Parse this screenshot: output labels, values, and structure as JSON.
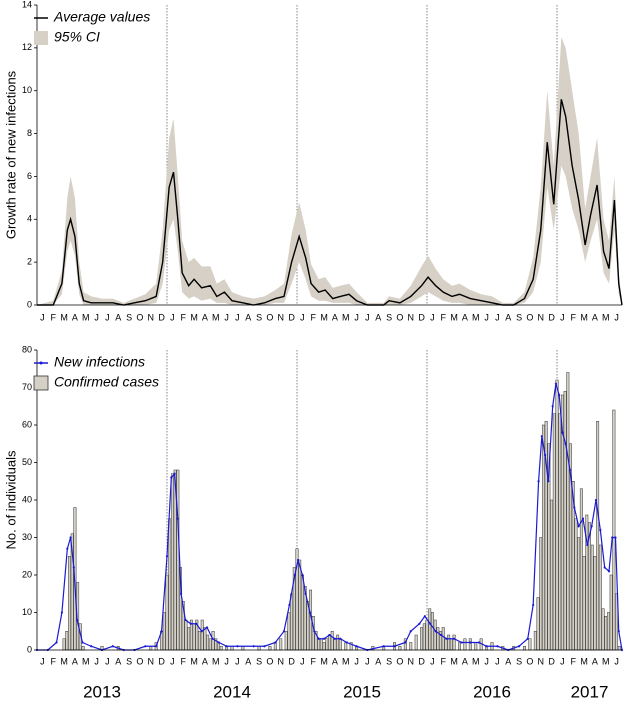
{
  "chart_data": [
    {
      "type": "line",
      "y_label": "Growth rate of new infections",
      "categories": [
        "J",
        "F",
        "M",
        "A",
        "M",
        "J",
        "J",
        "A",
        "S",
        "O",
        "N",
        "D",
        "J",
        "F",
        "M",
        "A",
        "M",
        "J",
        "J",
        "A",
        "S",
        "O",
        "N",
        "D",
        "J",
        "F",
        "M",
        "A",
        "M",
        "J",
        "J",
        "A",
        "S",
        "O",
        "N",
        "D",
        "J",
        "F",
        "M",
        "A",
        "M",
        "J",
        "J",
        "A",
        "S",
        "O",
        "N",
        "D",
        "J",
        "F",
        "M",
        "A",
        "M",
        "J"
      ],
      "xlim": [
        0,
        54
      ],
      "ylim": [
        0,
        14
      ],
      "yticks": [
        0,
        2,
        4,
        6,
        8,
        10,
        12,
        14
      ],
      "vlines": [
        12,
        24,
        36,
        48
      ],
      "legend": "upper left",
      "x": [
        0,
        1.5,
        2.3,
        2.8,
        3.1,
        3.5,
        3.9,
        4.3,
        5,
        6,
        7,
        8,
        9,
        10,
        11,
        11.6,
        12.2,
        12.6,
        13,
        13.4,
        14,
        14.5,
        15.2,
        16,
        16.6,
        17.3,
        18,
        19,
        20,
        21,
        22,
        22.8,
        23.5,
        24.2,
        24.8,
        25.3,
        26,
        26.6,
        27.3,
        28,
        28.8,
        29.5,
        30.5,
        32,
        32.5,
        33.5,
        34.5,
        35.5,
        36.1,
        36.8,
        37.5,
        38.3,
        39,
        40,
        41,
        42,
        43,
        44,
        45,
        45.8,
        46.5,
        47.1,
        47.7,
        48.4,
        48.8,
        49.4,
        50,
        50.6,
        51.1,
        51.7,
        52.3,
        52.8,
        53.3,
        53.7,
        54
      ],
      "series": [
        {
          "name": "Average values",
          "type": "line",
          "color": "#000000",
          "values": [
            0,
            0,
            1,
            3.5,
            4,
            3.2,
            1,
            0.2,
            0.1,
            0.1,
            0.1,
            0,
            0.1,
            0.2,
            0.4,
            2,
            5.5,
            6.2,
            4,
            1.5,
            0.9,
            1.2,
            0.8,
            0.9,
            0.4,
            0.6,
            0.2,
            0.1,
            0,
            0.1,
            0.3,
            0.4,
            2,
            3.2,
            2.2,
            1,
            0.6,
            0.7,
            0.3,
            0.4,
            0.5,
            0.2,
            0,
            0,
            0.2,
            0.1,
            0.4,
            0.9,
            1.3,
            0.9,
            0.6,
            0.4,
            0.5,
            0.3,
            0.2,
            0.1,
            0,
            0,
            0.3,
            1.2,
            3.5,
            7.6,
            4.7,
            9.6,
            8.8,
            6.5,
            4.9,
            2.8,
            4.2,
            5.6,
            2.5,
            1.7,
            4.9,
            1,
            0
          ]
        },
        {
          "name": "95% CI",
          "type": "band",
          "color": "#d6d0c6",
          "lower": [
            0,
            0,
            0.5,
            2.5,
            3,
            2.3,
            0.5,
            0,
            0,
            0,
            0,
            0,
            0,
            0,
            0.1,
            1,
            3.5,
            4,
            2.5,
            0.6,
            0.3,
            0.4,
            0.2,
            0.3,
            0.1,
            0.1,
            0,
            0,
            0,
            0,
            0.1,
            0.1,
            1,
            2,
            1.2,
            0.4,
            0.2,
            0.2,
            0.1,
            0.1,
            0.1,
            0,
            0,
            0,
            0,
            0,
            0.1,
            0.4,
            0.6,
            0.4,
            0.2,
            0.1,
            0.1,
            0,
            0,
            0,
            0,
            0,
            0.1,
            0.6,
            2,
            5.5,
            3.5,
            6.5,
            6,
            4.5,
            3.5,
            2,
            3,
            4,
            1.5,
            1,
            3.5,
            0.5,
            0
          ],
          "upper": [
            0,
            0.2,
            1.6,
            5,
            6,
            5,
            2,
            0.6,
            0.4,
            0.3,
            0.3,
            0.1,
            0.3,
            0.5,
            1,
            3.5,
            7.8,
            8.7,
            6,
            3,
            2,
            2.2,
            1.8,
            1.8,
            1,
            1.2,
            0.6,
            0.4,
            0.3,
            0.4,
            0.7,
            1,
            3.3,
            4.8,
            3.5,
            1.9,
            1.2,
            1.3,
            0.8,
            0.9,
            1,
            0.6,
            0.1,
            0.1,
            0.4,
            0.3,
            0.9,
            1.8,
            2.3,
            1.7,
            1.2,
            0.9,
            1,
            0.7,
            0.5,
            0.4,
            0.1,
            0.1,
            0.6,
            2.2,
            5.5,
            10,
            6.5,
            12.5,
            12,
            10,
            8,
            4.5,
            6,
            7.8,
            4,
            3,
            6,
            1.5,
            0.1
          ]
        }
      ]
    },
    {
      "type": "bar",
      "y_label": "No. of individuals",
      "categories": [
        "J",
        "F",
        "M",
        "A",
        "M",
        "J",
        "J",
        "A",
        "S",
        "O",
        "N",
        "D",
        "J",
        "F",
        "M",
        "A",
        "M",
        "J",
        "J",
        "A",
        "S",
        "O",
        "N",
        "D",
        "J",
        "F",
        "M",
        "A",
        "M",
        "J",
        "J",
        "A",
        "S",
        "O",
        "N",
        "D",
        "J",
        "F",
        "M",
        "A",
        "M",
        "J",
        "J",
        "A",
        "S",
        "O",
        "N",
        "D",
        "J",
        "F",
        "M",
        "A",
        "M",
        "J"
      ],
      "year_labels": [
        "2013",
        "2014",
        "2015",
        "2016",
        "2017"
      ],
      "xlim": [
        0,
        54
      ],
      "ylim": [
        0,
        80
      ],
      "yticks": [
        0,
        10,
        20,
        30,
        40,
        50,
        60,
        70,
        80
      ],
      "vlines": [
        12,
        24,
        36,
        48
      ],
      "legend": "upper left",
      "series": [
        {
          "name": "New infections",
          "type": "line",
          "color": "#1a1ad6",
          "x": [
            0,
            1,
            1.8,
            2.3,
            2.8,
            3.1,
            3.4,
            3.7,
            4.2,
            5,
            6,
            7,
            8,
            9,
            10,
            11,
            11.5,
            12,
            12.4,
            12.7,
            13,
            13.3,
            13.7,
            14.2,
            14.7,
            15.2,
            15.7,
            16.2,
            16.8,
            17.5,
            18.5,
            20,
            21,
            22,
            22.8,
            23.3,
            23.8,
            24.1,
            24.5,
            24.8,
            25.2,
            25.6,
            26,
            26.5,
            27,
            27.5,
            28,
            28.6,
            29.5,
            30.5,
            32,
            33,
            34,
            34.5,
            35.3,
            35.8,
            36.3,
            36.8,
            37.3,
            37.8,
            38.5,
            39.2,
            40,
            40.8,
            41.5,
            42.5,
            43.5,
            44.5,
            45.3,
            45.8,
            46.3,
            46.6,
            46.9,
            47.2,
            47.6,
            47.9,
            48.2,
            48.5,
            48.8,
            49.2,
            49.6,
            50,
            50.4,
            50.8,
            51.2,
            51.6,
            52,
            52.4,
            52.8,
            53.1,
            53.4,
            53.7,
            54
          ],
          "values": [
            0,
            0,
            2,
            10,
            27,
            30,
            22,
            8,
            2,
            1,
            0,
            1,
            0,
            0,
            1,
            1,
            5,
            25,
            46,
            47,
            35,
            15,
            8,
            7,
            7,
            5,
            6,
            3,
            2,
            1,
            1,
            1,
            1,
            2,
            5,
            12,
            20,
            24,
            20,
            15,
            10,
            5,
            3,
            3,
            4,
            3,
            3,
            2,
            1,
            0,
            1,
            1,
            2,
            5,
            7,
            9,
            7,
            5,
            4,
            3,
            3,
            2,
            2,
            2,
            1,
            1,
            0,
            1,
            3,
            12,
            45,
            57,
            52,
            45,
            65,
            71,
            68,
            58,
            55,
            48,
            38,
            33,
            35,
            28,
            33,
            40,
            32,
            22,
            21,
            30,
            30,
            5,
            0
          ]
        },
        {
          "name": "Confirmed cases",
          "type": "bar",
          "color": "#d4d0c6",
          "x": [
            2.5,
            2.75,
            3,
            3.25,
            3.5,
            3.75,
            4,
            4.25,
            6,
            7.5,
            10.5,
            11,
            11.5,
            11.75,
            12,
            12.25,
            12.5,
            12.75,
            13,
            13.25,
            13.5,
            13.75,
            14,
            14.25,
            14.5,
            14.75,
            15,
            15.25,
            15.5,
            15.75,
            16,
            16.25,
            16.5,
            16.75,
            17,
            17.5,
            18,
            19,
            20.5,
            21.5,
            22,
            22.5,
            23,
            23.25,
            23.5,
            23.75,
            24,
            24.25,
            24.5,
            24.75,
            25,
            25.25,
            25.5,
            25.75,
            26,
            26.25,
            26.5,
            26.75,
            27,
            27.25,
            27.5,
            27.75,
            28,
            28.5,
            29,
            29.5,
            31,
            32,
            33,
            33.5,
            34,
            34.5,
            35,
            35.5,
            35.75,
            36,
            36.25,
            36.5,
            36.75,
            37,
            37.25,
            37.5,
            37.75,
            38,
            38.25,
            38.5,
            39,
            39.5,
            40,
            40.5,
            41,
            41.5,
            42,
            43,
            44,
            45,
            45.5,
            46,
            46.25,
            46.5,
            46.75,
            47,
            47.25,
            47.5,
            47.75,
            48,
            48.25,
            48.5,
            48.75,
            49,
            49.25,
            49.5,
            49.75,
            50,
            50.25,
            50.5,
            50.75,
            51,
            51.25,
            51.5,
            51.75,
            52,
            52.25,
            52.5,
            52.75,
            53,
            53.25,
            53.5,
            53.75
          ],
          "values": [
            3,
            5,
            25,
            31,
            38,
            18,
            7,
            1,
            1,
            1,
            1,
            2,
            5,
            10,
            20,
            35,
            47,
            48,
            48,
            22,
            13,
            8,
            6,
            8,
            7,
            8,
            5,
            8,
            6,
            4,
            3,
            5,
            3,
            2,
            1,
            1,
            1,
            1,
            1,
            1,
            2,
            3,
            5,
            10,
            15,
            22,
            27,
            24,
            20,
            17,
            13,
            16,
            9,
            5,
            3,
            3,
            2,
            3,
            4,
            5,
            3,
            4,
            3,
            2,
            2,
            1,
            1,
            1,
            2,
            1,
            3,
            2,
            4,
            6,
            7,
            8,
            11,
            10,
            8,
            6,
            5,
            6,
            3,
            4,
            3,
            4,
            2,
            3,
            3,
            2,
            3,
            1,
            2,
            1,
            1,
            1,
            3,
            5,
            14,
            30,
            60,
            61,
            55,
            40,
            63,
            72,
            63,
            68,
            69,
            74,
            55,
            45,
            35,
            30,
            43,
            25,
            36,
            34,
            28,
            25,
            61,
            28,
            11,
            9,
            10,
            20,
            64,
            15,
            1
          ]
        }
      ]
    }
  ]
}
